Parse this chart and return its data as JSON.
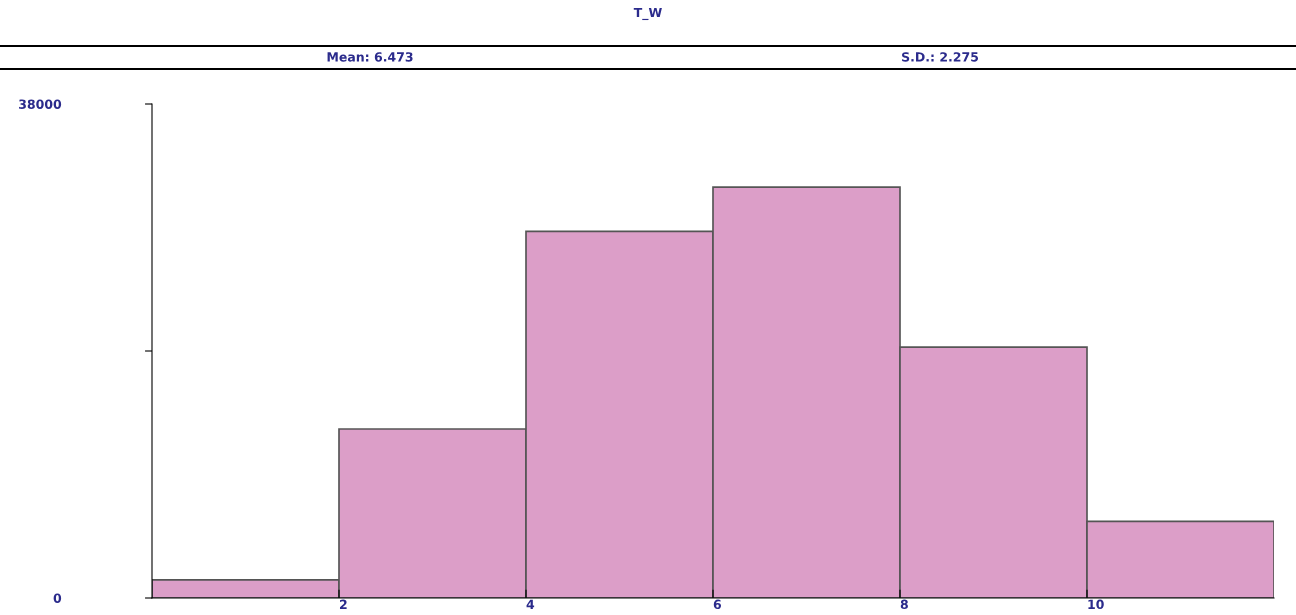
{
  "chart_data": {
    "type": "histogram",
    "title": "T_W",
    "annotations": [
      "Mean: 6.473",
      "S.D.: 2.275"
    ],
    "bins": [
      0,
      2,
      4,
      6,
      8,
      10,
      12
    ],
    "values": [
      1400,
      13000,
      28200,
      31600,
      19300,
      5900
    ],
    "color": "#dc9ec8",
    "xlim": [
      0,
      12
    ],
    "xticks": [
      2,
      4,
      6,
      8,
      10
    ],
    "ylim": [
      0,
      38000
    ],
    "yticks": [
      0,
      {
        "value": 19000,
        "label": null
      },
      38000
    ],
    "grid": false,
    "legend": false
  }
}
